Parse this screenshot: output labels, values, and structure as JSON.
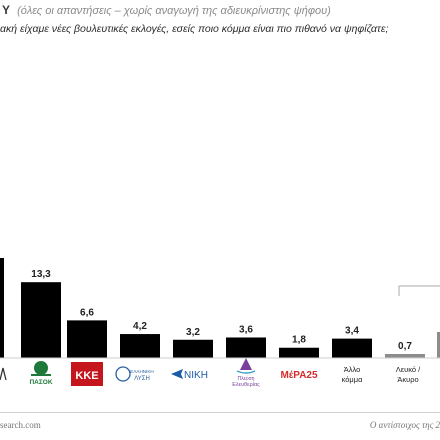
{
  "header": {
    "title_fragment": "Y",
    "subtitle": "(όλες οι απαντήσεις – χωρίς αναγωγή της αδιευκρίνιστης ψήφου)",
    "question": "ακή είχαμε νέες βουλευτικές εκλογές, εσείς ποιο κόμμα είναι πιο πιθανό να ψηφίζατε;"
  },
  "footer": {
    "site": "search.com",
    "note": "Ο αντίστοιχος της 2"
  },
  "colors": {
    "bar": "#000000",
    "bar_other": "#8c8c8c",
    "pasok": "#1e7a3a",
    "kke": "#c4161c",
    "niki": "#1b5aa6",
    "mera25": "#d22c2c",
    "plefsi": "#7a3f9b"
  },
  "chart_data": {
    "type": "bar",
    "categories": [
      "",
      "",
      "",
      "",
      "",
      "",
      "",
      "",
      "Άλλο κόμμα",
      "Λευκό / Άκυρο",
      ""
    ],
    "values": [
      null,
      13.3,
      6.6,
      4.2,
      3.2,
      3.6,
      1.8,
      3.4,
      null,
      0.7,
      null
    ],
    "value_labels": [
      "",
      "13,3",
      "6,6",
      "4,2",
      "3,2",
      "3,6",
      "1,8",
      "3,4",
      "",
      "0,7",
      ""
    ],
    "logos": [
      "",
      "ΠΑΣΟΚ",
      "ΚΚΕ",
      "ΕΛΛΗΝΙΚΗ ΛΥΣΗ",
      "ΝΙΚΗ",
      "Πλεύση Ελευθερίας",
      "ΜέΡΑ25",
      "",
      "",
      "",
      ""
    ],
    "logo_icons": [
      "",
      "pasok-logo",
      "kke-logo",
      "elliniki-lysi-logo",
      "niki-logo",
      "plefsi-eleftherias-logo",
      "mera25-logo",
      "",
      "",
      "",
      ""
    ],
    "partial_bars": [
      "left-edge-bar",
      "right-edge-bar"
    ]
  }
}
